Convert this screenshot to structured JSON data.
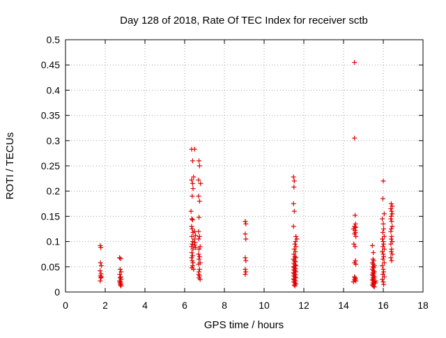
{
  "chart_data": {
    "type": "scatter",
    "title": "Day 128 of 2018, Rate Of TEC Index for receiver sctb",
    "xlabel": "GPS time / hours",
    "ylabel": "ROTI / TECUs",
    "xlim": [
      0,
      18
    ],
    "ylim": [
      0,
      0.5
    ],
    "xticks": [
      0,
      2,
      4,
      6,
      8,
      10,
      12,
      14,
      16,
      18
    ],
    "xtick_labels": [
      "0",
      "2",
      "4",
      "6",
      "8",
      "10",
      "12",
      "14",
      "16",
      "18"
    ],
    "yticks": [
      0,
      0.05,
      0.1,
      0.15,
      0.2,
      0.25,
      0.3,
      0.35,
      0.4,
      0.45,
      0.5
    ],
    "ytick_labels": [
      "0",
      "0.05",
      "0.1",
      "0.15",
      "0.2",
      "0.25",
      "0.3",
      "0.35",
      "0.4",
      "0.45",
      "0.5"
    ],
    "grid": true,
    "marker": "+",
    "marker_color": "#e00000",
    "series": [
      {
        "name": "ROTI",
        "points": [
          [
            1.75,
            0.092
          ],
          [
            1.78,
            0.088
          ],
          [
            1.76,
            0.058
          ],
          [
            1.8,
            0.052
          ],
          [
            1.74,
            0.042
          ],
          [
            1.79,
            0.036
          ],
          [
            1.76,
            0.032
          ],
          [
            1.8,
            0.03
          ],
          [
            1.78,
            0.028
          ],
          [
            1.75,
            0.022
          ],
          [
            2.72,
            0.068
          ],
          [
            2.78,
            0.066
          ],
          [
            2.75,
            0.045
          ],
          [
            2.8,
            0.04
          ],
          [
            2.73,
            0.035
          ],
          [
            2.78,
            0.03
          ],
          [
            2.75,
            0.028
          ],
          [
            2.8,
            0.025
          ],
          [
            2.72,
            0.022
          ],
          [
            2.77,
            0.02
          ],
          [
            2.74,
            0.018
          ],
          [
            2.79,
            0.016
          ],
          [
            2.76,
            0.014
          ],
          [
            2.8,
            0.012
          ],
          [
            6.35,
            0.283
          ],
          [
            6.5,
            0.283
          ],
          [
            6.4,
            0.26
          ],
          [
            6.45,
            0.228
          ],
          [
            6.35,
            0.222
          ],
          [
            6.4,
            0.215
          ],
          [
            6.42,
            0.205
          ],
          [
            6.38,
            0.19
          ],
          [
            6.32,
            0.16
          ],
          [
            6.36,
            0.145
          ],
          [
            6.4,
            0.143
          ],
          [
            6.35,
            0.13
          ],
          [
            6.38,
            0.125
          ],
          [
            6.42,
            0.118
          ],
          [
            6.36,
            0.11
          ],
          [
            6.4,
            0.1
          ],
          [
            6.38,
            0.095
          ],
          [
            6.35,
            0.09
          ],
          [
            6.42,
            0.085
          ],
          [
            6.36,
            0.078
          ],
          [
            6.4,
            0.072
          ],
          [
            6.35,
            0.068
          ],
          [
            6.38,
            0.062
          ],
          [
            6.42,
            0.058
          ],
          [
            6.4,
            0.052
          ],
          [
            6.36,
            0.048
          ],
          [
            6.45,
            0.045
          ],
          [
            6.5,
            0.12
          ],
          [
            6.55,
            0.112
          ],
          [
            6.48,
            0.105
          ],
          [
            6.52,
            0.098
          ],
          [
            6.5,
            0.093
          ],
          [
            6.55,
            0.088
          ],
          [
            6.72,
            0.26
          ],
          [
            6.75,
            0.25
          ],
          [
            6.7,
            0.222
          ],
          [
            6.8,
            0.215
          ],
          [
            6.7,
            0.19
          ],
          [
            6.75,
            0.18
          ],
          [
            6.72,
            0.148
          ],
          [
            6.7,
            0.12
          ],
          [
            6.75,
            0.11
          ],
          [
            6.7,
            0.105
          ],
          [
            6.78,
            0.09
          ],
          [
            6.72,
            0.085
          ],
          [
            6.7,
            0.075
          ],
          [
            6.75,
            0.07
          ],
          [
            6.72,
            0.065
          ],
          [
            6.78,
            0.058
          ],
          [
            6.7,
            0.055
          ],
          [
            6.75,
            0.045
          ],
          [
            6.72,
            0.04
          ],
          [
            6.7,
            0.035
          ],
          [
            6.75,
            0.032
          ],
          [
            6.72,
            0.028
          ],
          [
            6.78,
            0.025
          ],
          [
            9.05,
            0.14
          ],
          [
            9.08,
            0.135
          ],
          [
            9.05,
            0.115
          ],
          [
            9.08,
            0.105
          ],
          [
            9.05,
            0.068
          ],
          [
            9.08,
            0.062
          ],
          [
            9.05,
            0.045
          ],
          [
            9.08,
            0.04
          ],
          [
            9.05,
            0.035
          ],
          [
            11.48,
            0.228
          ],
          [
            11.52,
            0.22
          ],
          [
            11.5,
            0.208
          ],
          [
            11.48,
            0.175
          ],
          [
            11.52,
            0.16
          ],
          [
            11.48,
            0.13
          ],
          [
            11.6,
            0.11
          ],
          [
            11.65,
            0.105
          ],
          [
            11.58,
            0.1
          ],
          [
            11.55,
            0.095
          ],
          [
            11.6,
            0.09
          ],
          [
            11.52,
            0.085
          ],
          [
            11.58,
            0.08
          ],
          [
            11.5,
            0.075
          ],
          [
            11.55,
            0.07
          ],
          [
            11.6,
            0.068
          ],
          [
            11.48,
            0.065
          ],
          [
            11.52,
            0.062
          ],
          [
            11.58,
            0.06
          ],
          [
            11.5,
            0.057
          ],
          [
            11.55,
            0.054
          ],
          [
            11.6,
            0.052
          ],
          [
            11.48,
            0.05
          ],
          [
            11.52,
            0.048
          ],
          [
            11.58,
            0.046
          ],
          [
            11.5,
            0.044
          ],
          [
            11.55,
            0.042
          ],
          [
            11.6,
            0.04
          ],
          [
            11.48,
            0.038
          ],
          [
            11.52,
            0.036
          ],
          [
            11.58,
            0.034
          ],
          [
            11.5,
            0.032
          ],
          [
            11.55,
            0.03
          ],
          [
            11.6,
            0.028
          ],
          [
            11.48,
            0.026
          ],
          [
            11.52,
            0.024
          ],
          [
            11.58,
            0.022
          ],
          [
            11.5,
            0.02
          ],
          [
            11.55,
            0.018
          ],
          [
            11.6,
            0.016
          ],
          [
            11.52,
            0.014
          ],
          [
            11.55,
            0.012
          ],
          [
            14.55,
            0.455
          ],
          [
            14.55,
            0.305
          ],
          [
            14.58,
            0.152
          ],
          [
            14.6,
            0.135
          ],
          [
            14.55,
            0.13
          ],
          [
            14.62,
            0.128
          ],
          [
            14.5,
            0.125
          ],
          [
            14.58,
            0.122
          ],
          [
            14.6,
            0.118
          ],
          [
            14.55,
            0.115
          ],
          [
            14.62,
            0.11
          ],
          [
            14.52,
            0.095
          ],
          [
            14.58,
            0.09
          ],
          [
            14.6,
            0.062
          ],
          [
            14.55,
            0.058
          ],
          [
            14.62,
            0.055
          ],
          [
            14.55,
            0.03
          ],
          [
            14.58,
            0.028
          ],
          [
            14.6,
            0.026
          ],
          [
            14.55,
            0.024
          ],
          [
            14.62,
            0.022
          ],
          [
            14.5,
            0.02
          ],
          [
            15.45,
            0.092
          ],
          [
            15.5,
            0.078
          ],
          [
            15.48,
            0.065
          ],
          [
            15.52,
            0.062
          ],
          [
            15.45,
            0.058
          ],
          [
            15.5,
            0.055
          ],
          [
            15.55,
            0.052
          ],
          [
            15.48,
            0.05
          ],
          [
            15.52,
            0.048
          ],
          [
            15.45,
            0.045
          ],
          [
            15.5,
            0.042
          ],
          [
            15.55,
            0.04
          ],
          [
            15.48,
            0.038
          ],
          [
            15.52,
            0.036
          ],
          [
            15.45,
            0.034
          ],
          [
            15.5,
            0.032
          ],
          [
            15.55,
            0.03
          ],
          [
            15.48,
            0.028
          ],
          [
            15.52,
            0.026
          ],
          [
            15.45,
            0.024
          ],
          [
            15.5,
            0.022
          ],
          [
            15.55,
            0.02
          ],
          [
            15.48,
            0.018
          ],
          [
            15.52,
            0.016
          ],
          [
            15.45,
            0.014
          ],
          [
            15.5,
            0.012
          ],
          [
            15.55,
            0.01
          ],
          [
            15.6,
            0.018
          ],
          [
            15.62,
            0.022
          ],
          [
            16.0,
            0.22
          ],
          [
            15.98,
            0.185
          ],
          [
            16.05,
            0.155
          ],
          [
            15.95,
            0.145
          ],
          [
            16.0,
            0.135
          ],
          [
            16.02,
            0.125
          ],
          [
            15.98,
            0.118
          ],
          [
            16.05,
            0.11
          ],
          [
            15.95,
            0.105
          ],
          [
            16.0,
            0.1
          ],
          [
            16.02,
            0.095
          ],
          [
            15.98,
            0.09
          ],
          [
            16.05,
            0.085
          ],
          [
            15.95,
            0.08
          ],
          [
            16.0,
            0.075
          ],
          [
            16.02,
            0.07
          ],
          [
            15.98,
            0.065
          ],
          [
            16.05,
            0.058
          ],
          [
            15.95,
            0.052
          ],
          [
            16.0,
            0.045
          ],
          [
            16.02,
            0.04
          ],
          [
            15.98,
            0.035
          ],
          [
            16.05,
            0.03
          ],
          [
            15.95,
            0.025
          ],
          [
            16.0,
            0.02
          ],
          [
            16.02,
            0.015
          ],
          [
            16.4,
            0.175
          ],
          [
            16.45,
            0.17
          ],
          [
            16.38,
            0.165
          ],
          [
            16.42,
            0.16
          ],
          [
            16.45,
            0.155
          ],
          [
            16.4,
            0.15
          ],
          [
            16.38,
            0.145
          ],
          [
            16.42,
            0.14
          ],
          [
            16.45,
            0.13
          ],
          [
            16.4,
            0.125
          ],
          [
            16.38,
            0.12
          ],
          [
            16.42,
            0.11
          ],
          [
            16.4,
            0.105
          ],
          [
            16.45,
            0.1
          ],
          [
            16.38,
            0.095
          ],
          [
            16.42,
            0.085
          ],
          [
            16.4,
            0.08
          ],
          [
            16.45,
            0.075
          ],
          [
            16.38,
            0.068
          ],
          [
            16.42,
            0.062
          ]
        ]
      }
    ]
  }
}
